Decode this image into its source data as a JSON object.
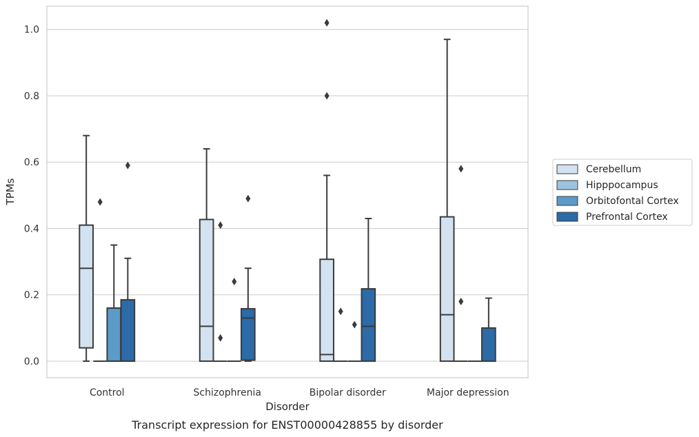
{
  "caption": "Transcript expression for ENST00000428855 by disorder",
  "chart_data": {
    "type": "box",
    "xlabel": "Disorder",
    "ylabel": "TPMs",
    "ylim": [
      -0.05,
      1.07
    ],
    "yticks": [
      0.0,
      0.2,
      0.4,
      0.6,
      0.8,
      1.0
    ],
    "ytick_labels": [
      "0.0",
      "0.2",
      "0.4",
      "0.6",
      "0.8",
      "1.0"
    ],
    "grid": true,
    "legend_position": "right",
    "categories": [
      "Control",
      "Schizophrenia",
      "Bipolar disorder",
      "Major depression"
    ],
    "series": [
      {
        "name": "Cerebellum",
        "color": "#d3e2f0",
        "boxes": [
          {
            "whislo": 0.0,
            "q1": 0.04,
            "med": 0.28,
            "q3": 0.41,
            "whishi": 0.68,
            "fliers": []
          },
          {
            "whislo": 0.0,
            "q1": 0.0,
            "med": 0.105,
            "q3": 0.427,
            "whishi": 0.64,
            "fliers": []
          },
          {
            "whislo": 0.0,
            "q1": 0.0,
            "med": 0.02,
            "q3": 0.307,
            "whishi": 0.56,
            "fliers": [
              0.8,
              1.02
            ]
          },
          {
            "whislo": 0.0,
            "q1": 0.0,
            "med": 0.14,
            "q3": 0.435,
            "whishi": 0.97,
            "fliers": []
          }
        ]
      },
      {
        "name": "Hipppocampus",
        "color": "#9dc4de",
        "boxes": [
          {
            "whislo": 0.0,
            "q1": 0.0,
            "med": 0.0,
            "q3": 0.0,
            "whishi": 0.0,
            "fliers": [
              0.48
            ]
          },
          {
            "whislo": 0.0,
            "q1": 0.0,
            "med": 0.0,
            "q3": 0.0,
            "whishi": 0.0,
            "fliers": [
              0.07,
              0.41
            ]
          },
          {
            "whislo": 0.0,
            "q1": 0.0,
            "med": 0.0,
            "q3": 0.0,
            "whishi": 0.0,
            "fliers": [
              0.15
            ]
          },
          {
            "whislo": 0.0,
            "q1": 0.0,
            "med": 0.0,
            "q3": 0.0,
            "whishi": 0.0,
            "fliers": [
              0.18,
              0.58
            ]
          }
        ]
      },
      {
        "name": "Orbitofontal Cortex",
        "color": "#5a9bc8",
        "boxes": [
          {
            "whislo": 0.0,
            "q1": 0.0,
            "med": 0.0,
            "q3": 0.16,
            "whishi": 0.35,
            "fliers": []
          },
          {
            "whislo": 0.0,
            "q1": 0.0,
            "med": 0.0,
            "q3": 0.0,
            "whishi": 0.0,
            "fliers": [
              0.24
            ]
          },
          {
            "whislo": 0.0,
            "q1": 0.0,
            "med": 0.0,
            "q3": 0.0,
            "whishi": 0.0,
            "fliers": [
              0.11
            ]
          },
          {
            "whislo": 0.0,
            "q1": 0.0,
            "med": 0.0,
            "q3": 0.0,
            "whishi": 0.0,
            "fliers": []
          }
        ]
      },
      {
        "name": "Prefrontal Cortex",
        "color": "#2c6aa8",
        "boxes": [
          {
            "whislo": 0.0,
            "q1": 0.0,
            "med": 0.0,
            "q3": 0.185,
            "whishi": 0.31,
            "fliers": [
              0.59
            ]
          },
          {
            "whislo": 0.0,
            "q1": 0.003,
            "med": 0.13,
            "q3": 0.158,
            "whishi": 0.28,
            "fliers": [
              0.49
            ]
          },
          {
            "whislo": 0.0,
            "q1": 0.0,
            "med": 0.105,
            "q3": 0.218,
            "whishi": 0.43,
            "fliers": []
          },
          {
            "whislo": 0.0,
            "q1": 0.0,
            "med": 0.0,
            "q3": 0.1,
            "whishi": 0.19,
            "fliers": []
          }
        ]
      }
    ]
  }
}
